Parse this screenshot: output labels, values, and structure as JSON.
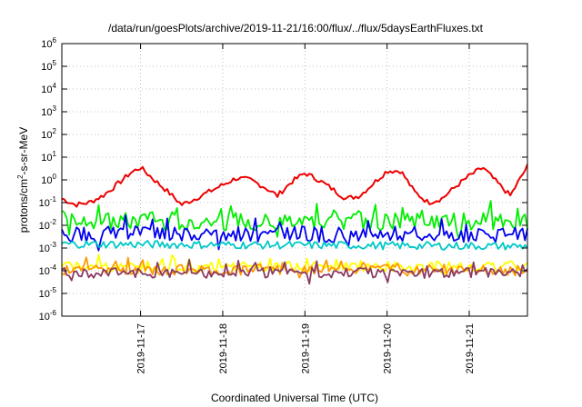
{
  "chart_data": {
    "type": "line",
    "title": "/data/run/goesPlots/archive/2019-11-21/16:00/flux/../flux/5daysEarthFluxes.txt",
    "xlabel": "Coordinated Universal Time (UTC)",
    "ylabel": {
      "main": "protons/cm",
      "sup": "2",
      "rest": "-s-sr-MeV"
    },
    "y_scale": "log",
    "ylim": [
      1e-06,
      1000000.0
    ],
    "y_ticks": [
      {
        "base": "10",
        "exp": "-6",
        "value": 1e-06
      },
      {
        "base": "10",
        "exp": "-5",
        "value": 1e-05
      },
      {
        "base": "10",
        "exp": "-4",
        "value": 0.0001
      },
      {
        "base": "10",
        "exp": "-3",
        "value": 0.001
      },
      {
        "base": "10",
        "exp": "-2",
        "value": 0.01
      },
      {
        "base": "10",
        "exp": "-1",
        "value": 0.1
      },
      {
        "base": "10",
        "exp": "0",
        "value": 1
      },
      {
        "base": "10",
        "exp": "1",
        "value": 10
      },
      {
        "base": "10",
        "exp": "2",
        "value": 100
      },
      {
        "base": "10",
        "exp": "3",
        "value": 1000
      },
      {
        "base": "10",
        "exp": "4",
        "value": 10000
      },
      {
        "base": "10",
        "exp": "5",
        "value": 100000
      },
      {
        "base": "10",
        "exp": "6",
        "value": 1000000
      }
    ],
    "xlim": [
      "2019-11-16T01:00",
      "2019-11-21T17:00"
    ],
    "x_ticks": [
      "2019-11-17",
      "2019-11-18",
      "2019-11-19",
      "2019-11-20",
      "2019-11-21"
    ],
    "grid": true,
    "series": [
      {
        "color": "#ee0000",
        "x": [
          "2019-11-16T01:00",
          "2019-11-16T05:00",
          "2019-11-16T09:00",
          "2019-11-16T13:00",
          "2019-11-16T17:00",
          "2019-11-16T21:00",
          "2019-11-17T00:00",
          "2019-11-17T04:00",
          "2019-11-17T08:00",
          "2019-11-17T12:00",
          "2019-11-17T16:00",
          "2019-11-17T20:00",
          "2019-11-18T00:00",
          "2019-11-18T04:00",
          "2019-11-18T08:00",
          "2019-11-18T12:00",
          "2019-11-18T16:00",
          "2019-11-18T20:00",
          "2019-11-19T00:00",
          "2019-11-19T04:00",
          "2019-11-19T08:00",
          "2019-11-19T12:00",
          "2019-11-19T16:00",
          "2019-11-19T20:00",
          "2019-11-20T00:00",
          "2019-11-20T04:00",
          "2019-11-20T08:00",
          "2019-11-20T12:00",
          "2019-11-20T16:00",
          "2019-11-20T20:00",
          "2019-11-21T00:00",
          "2019-11-21T04:00",
          "2019-11-21T08:00",
          "2019-11-21T12:00",
          "2019-11-21T17:00"
        ],
        "values": [
          0.15,
          0.08,
          0.1,
          0.2,
          0.6,
          2.0,
          3.5,
          1.0,
          0.3,
          0.08,
          0.15,
          0.3,
          0.6,
          1.2,
          1.0,
          0.5,
          0.2,
          0.8,
          2.0,
          1.0,
          0.4,
          0.15,
          0.2,
          0.7,
          2.5,
          2.5,
          0.3,
          0.1,
          0.15,
          0.5,
          1.5,
          3.5,
          0.8,
          0.2,
          4.0
        ],
        "jitter": 0.45
      },
      {
        "color": "#00ee00",
        "x": [
          "2019-11-16T01:00",
          "2019-11-21T17:00"
        ],
        "values": [
          0.015,
          0.015
        ],
        "jitter": 1.6,
        "spikes": true
      },
      {
        "color": "#0000ee",
        "x": [
          "2019-11-16T01:00",
          "2019-11-21T17:00"
        ],
        "values": [
          0.004,
          0.004
        ],
        "jitter": 1.4,
        "spikes": true
      },
      {
        "color": "#00c8c8",
        "x": [
          "2019-11-16T01:00",
          "2019-11-21T17:00"
        ],
        "values": [
          0.0015,
          0.0012
        ],
        "jitter": 0.7
      },
      {
        "color": "#ffff00",
        "x": [
          "2019-11-16T01:00",
          "2019-11-21T17:00"
        ],
        "values": [
          0.00015,
          0.00015
        ],
        "jitter": 0.9,
        "spikes": true
      },
      {
        "color": "#ff9900",
        "x": [
          "2019-11-16T01:00",
          "2019-11-21T17:00"
        ],
        "values": [
          0.00011,
          0.00011
        ],
        "jitter": 0.9,
        "spikes": true
      },
      {
        "color": "#8b3a62",
        "x": [
          "2019-11-16T01:00",
          "2019-11-21T17:00"
        ],
        "values": [
          8e-05,
          8e-05
        ],
        "jitter": 0.9,
        "spikes": true
      }
    ]
  }
}
